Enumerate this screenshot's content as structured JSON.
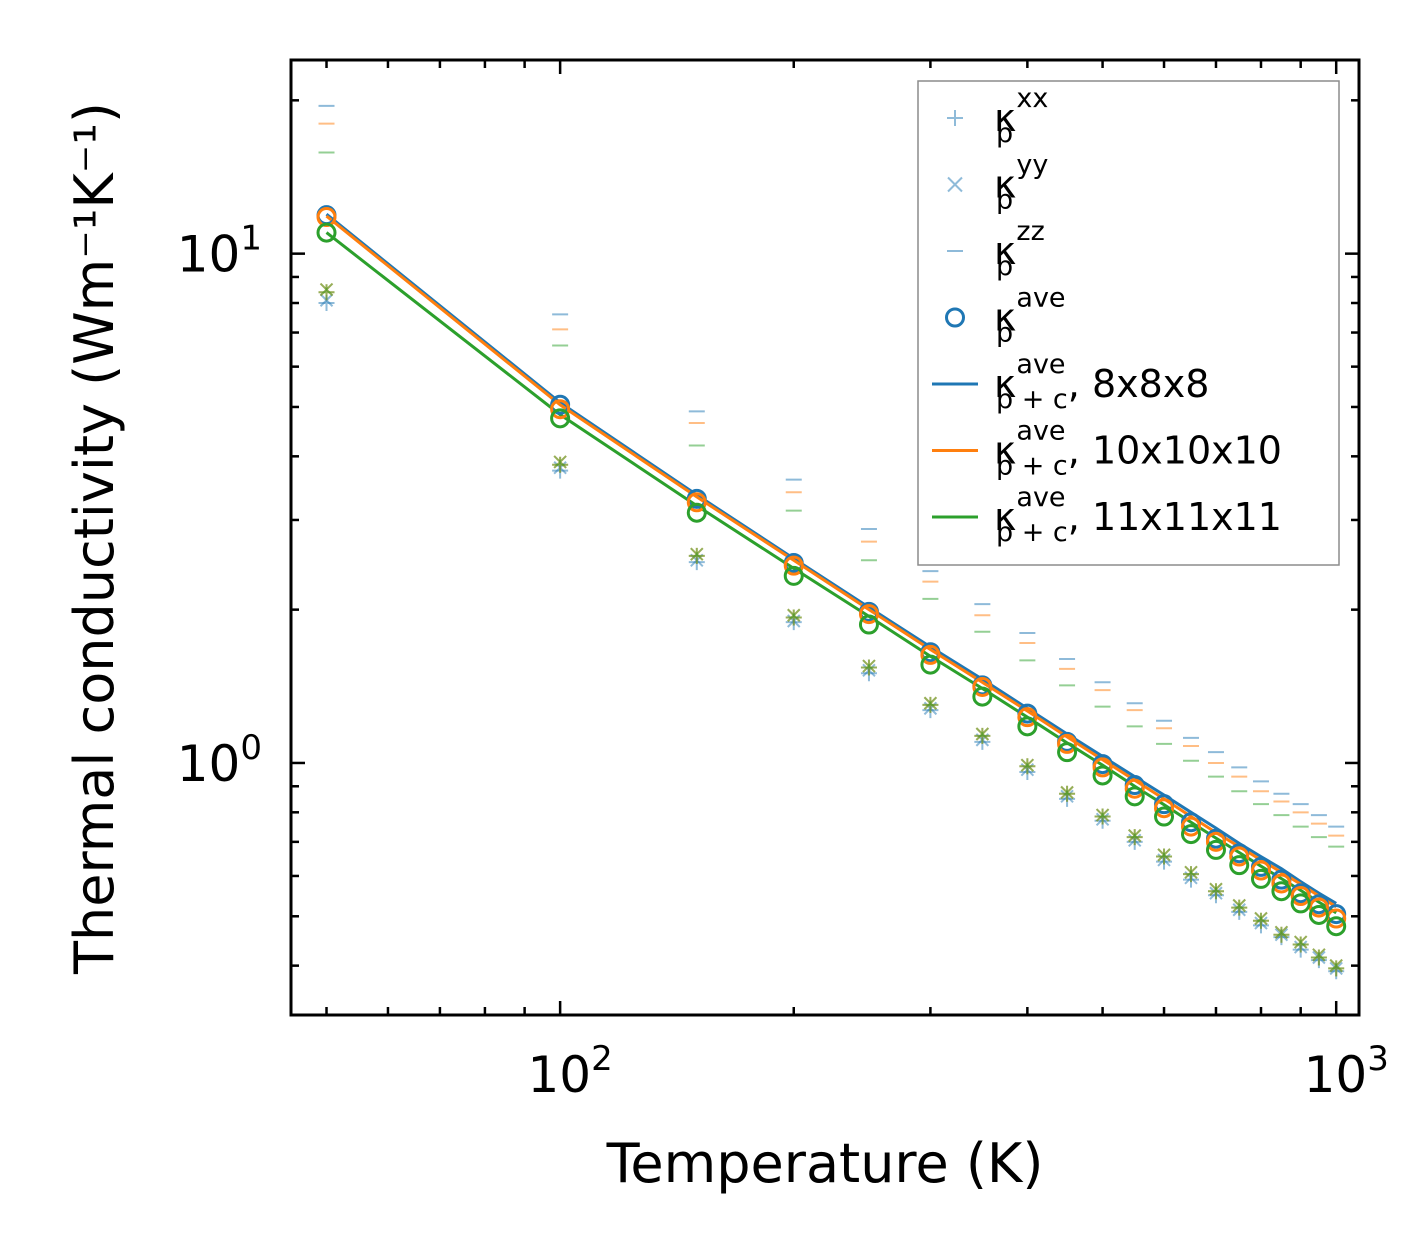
{
  "chart_data": {
    "type": "scatter",
    "xscale": "log",
    "yscale": "log",
    "xlabel": "Temperature (K)",
    "ylabel": "Thermal conductivity (Wm⁻¹K⁻¹)",
    "xlim": [
      45,
      1070
    ],
    "ylim": [
      0.32,
      24
    ],
    "x_tick_labels": [
      {
        "value": 100,
        "base": "10",
        "exp": "2"
      },
      {
        "value": 1000,
        "base": "10",
        "exp": "3"
      }
    ],
    "y_tick_labels": [
      {
        "value": 1,
        "base": "10",
        "exp": "0"
      },
      {
        "value": 10,
        "base": "10",
        "exp": "1"
      }
    ],
    "temperatures": [
      50,
      100,
      150,
      200,
      250,
      300,
      350,
      400,
      450,
      500,
      550,
      600,
      650,
      700,
      750,
      800,
      850,
      900,
      950,
      1000
    ],
    "supercells": [
      {
        "name": "8x8x8",
        "color": "#1f77b4",
        "kappa_xx": [
          8.0,
          3.75,
          2.48,
          1.89,
          1.5,
          1.27,
          1.1,
          0.96,
          0.85,
          0.77,
          0.7,
          0.64,
          0.59,
          0.55,
          0.51,
          0.48,
          0.455,
          0.43,
          0.41,
          0.39
        ],
        "kappa_yy": [
          8.1,
          3.8,
          2.5,
          1.9,
          1.52,
          1.28,
          1.11,
          0.97,
          0.86,
          0.775,
          0.705,
          0.645,
          0.595,
          0.555,
          0.515,
          0.485,
          0.46,
          0.435,
          0.415,
          0.395
        ],
        "kappa_zz": [
          19.5,
          7.6,
          4.9,
          3.6,
          2.88,
          2.38,
          2.05,
          1.8,
          1.6,
          1.44,
          1.31,
          1.21,
          1.12,
          1.05,
          0.98,
          0.92,
          0.87,
          0.83,
          0.79,
          0.75
        ],
        "kappa_ave": [
          11.9,
          5.05,
          3.3,
          2.47,
          1.98,
          1.65,
          1.42,
          1.25,
          1.1,
          0.995,
          0.905,
          0.83,
          0.765,
          0.71,
          0.665,
          0.625,
          0.59,
          0.555,
          0.528,
          0.505
        ],
        "kappa_ave_pc": [
          11.95,
          5.1,
          3.36,
          2.52,
          2.02,
          1.69,
          1.46,
          1.28,
          1.14,
          1.03,
          0.94,
          0.865,
          0.8,
          0.745,
          0.695,
          0.655,
          0.62,
          0.585,
          0.555,
          0.53
        ]
      },
      {
        "name": "10x10x10",
        "color": "#ff7f0e",
        "kappa_xx": [
          8.4,
          3.85,
          2.55,
          1.93,
          1.54,
          1.3,
          1.13,
          0.985,
          0.87,
          0.785,
          0.715,
          0.655,
          0.605,
          0.56,
          0.52,
          0.49,
          0.46,
          0.44,
          0.415,
          0.395
        ],
        "kappa_yy": [
          8.5,
          3.9,
          2.57,
          1.95,
          1.55,
          1.31,
          1.14,
          0.99,
          0.875,
          0.79,
          0.72,
          0.66,
          0.61,
          0.565,
          0.525,
          0.495,
          0.465,
          0.445,
          0.42,
          0.4
        ],
        "kappa_zz": [
          18.0,
          7.1,
          4.65,
          3.4,
          2.72,
          2.27,
          1.95,
          1.72,
          1.53,
          1.39,
          1.27,
          1.17,
          1.08,
          1.0,
          0.94,
          0.88,
          0.84,
          0.8,
          0.76,
          0.72
        ],
        "kappa_ave": [
          11.8,
          4.95,
          3.25,
          2.44,
          1.96,
          1.63,
          1.41,
          1.23,
          1.09,
          0.98,
          0.89,
          0.815,
          0.75,
          0.7,
          0.655,
          0.615,
          0.58,
          0.548,
          0.52,
          0.495
        ],
        "kappa_ave_pc": [
          11.85,
          5.05,
          3.33,
          2.5,
          2.0,
          1.67,
          1.44,
          1.265,
          1.125,
          1.015,
          0.925,
          0.85,
          0.785,
          0.73,
          0.685,
          0.645,
          0.61,
          0.578,
          0.548,
          0.522
        ]
      },
      {
        "name": "11x11x11",
        "color": "#2ca02c",
        "kappa_xx": [
          8.4,
          3.85,
          2.55,
          1.93,
          1.54,
          1.3,
          1.13,
          0.985,
          0.87,
          0.785,
          0.715,
          0.655,
          0.605,
          0.56,
          0.52,
          0.49,
          0.46,
          0.44,
          0.415,
          0.395
        ],
        "kappa_yy": [
          8.5,
          3.9,
          2.57,
          1.95,
          1.55,
          1.31,
          1.14,
          0.99,
          0.875,
          0.79,
          0.72,
          0.66,
          0.61,
          0.565,
          0.525,
          0.495,
          0.465,
          0.445,
          0.42,
          0.4
        ],
        "kappa_zz": [
          15.8,
          6.6,
          4.2,
          3.13,
          2.5,
          2.1,
          1.81,
          1.59,
          1.42,
          1.29,
          1.18,
          1.09,
          1.01,
          0.94,
          0.88,
          0.83,
          0.79,
          0.75,
          0.715,
          0.685
        ],
        "kappa_ave": [
          11.0,
          4.75,
          3.1,
          2.33,
          1.87,
          1.56,
          1.35,
          1.18,
          1.05,
          0.945,
          0.86,
          0.785,
          0.725,
          0.675,
          0.63,
          0.592,
          0.56,
          0.53,
          0.503,
          0.478
        ],
        "kappa_ave_pc": [
          11.0,
          4.83,
          3.2,
          2.41,
          1.94,
          1.62,
          1.4,
          1.23,
          1.095,
          0.99,
          0.9,
          0.828,
          0.765,
          0.712,
          0.667,
          0.627,
          0.593,
          0.562,
          0.533,
          0.508
        ]
      }
    ],
    "legend": {
      "position": "top-right",
      "entries": [
        {
          "marker": "plus",
          "base": "κ",
          "sup": "xx",
          "sub": "p",
          "suffix": ""
        },
        {
          "marker": "x",
          "base": "κ",
          "sup": "yy",
          "sub": "p",
          "suffix": ""
        },
        {
          "marker": "dash",
          "base": "κ",
          "sup": "zz",
          "sub": "p",
          "suffix": ""
        },
        {
          "marker": "circle",
          "base": "κ",
          "sup": "ave",
          "sub": "p",
          "suffix": ""
        },
        {
          "marker": "line-0",
          "base": "κ",
          "sup": "ave",
          "sub": "p + c",
          "suffix": ", 8x8x8"
        },
        {
          "marker": "line-1",
          "base": "κ",
          "sup": "ave",
          "sub": "p + c",
          "suffix": ", 10x10x10"
        },
        {
          "marker": "line-2",
          "base": "κ",
          "sup": "ave",
          "sub": "p + c",
          "suffix": ", 11x11x11"
        }
      ]
    }
  }
}
